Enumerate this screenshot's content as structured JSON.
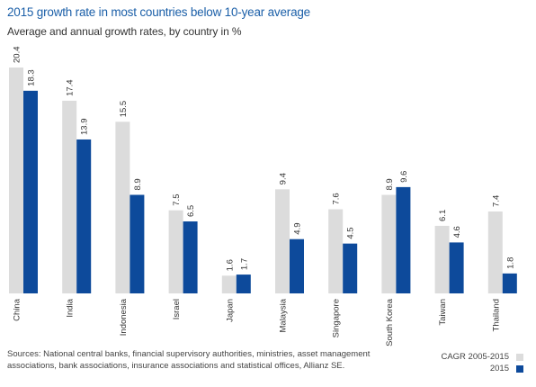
{
  "title": "2015 growth rate in most countries below 10-year average",
  "subtitle": "Average and annual growth rates, by country in %",
  "source": "Sources: National central banks, financial supervisory authorities, ministries, asset management associations, bank associations, insurance associations and statistical offices, Allianz SE.",
  "colors": {
    "cagr": "#dcdcdc",
    "y2015": "#0d4a9b"
  },
  "chart_data": {
    "type": "bar",
    "categories": [
      "China",
      "India",
      "Indonesia",
      "Israel",
      "Japan",
      "Malaysia",
      "Singapore",
      "South Korea",
      "Taiwan",
      "Thailand"
    ],
    "series": [
      {
        "name": "CAGR 2005-2015",
        "values": [
          20.4,
          17.4,
          15.5,
          7.5,
          1.6,
          9.4,
          7.6,
          8.9,
          6.1,
          7.4
        ],
        "labels": [
          "20.4",
          "17.4",
          "15.5",
          "7.5",
          "1.6",
          "9.4",
          "7.6",
          "8.9",
          "6.1",
          "7.4"
        ]
      },
      {
        "name": "2015",
        "values": [
          18.3,
          13.9,
          8.9,
          6.5,
          1.7,
          4.9,
          4.5,
          9.6,
          4.6,
          1.8
        ],
        "labels": [
          "18.3",
          "13.9",
          "8.9",
          "6.5",
          "1.7",
          "4.9",
          "4.5",
          "9.6",
          "4.6",
          "1.8"
        ]
      }
    ],
    "ylim": [
      0,
      20.4
    ],
    "grid": false,
    "legend": "bottom-right"
  }
}
